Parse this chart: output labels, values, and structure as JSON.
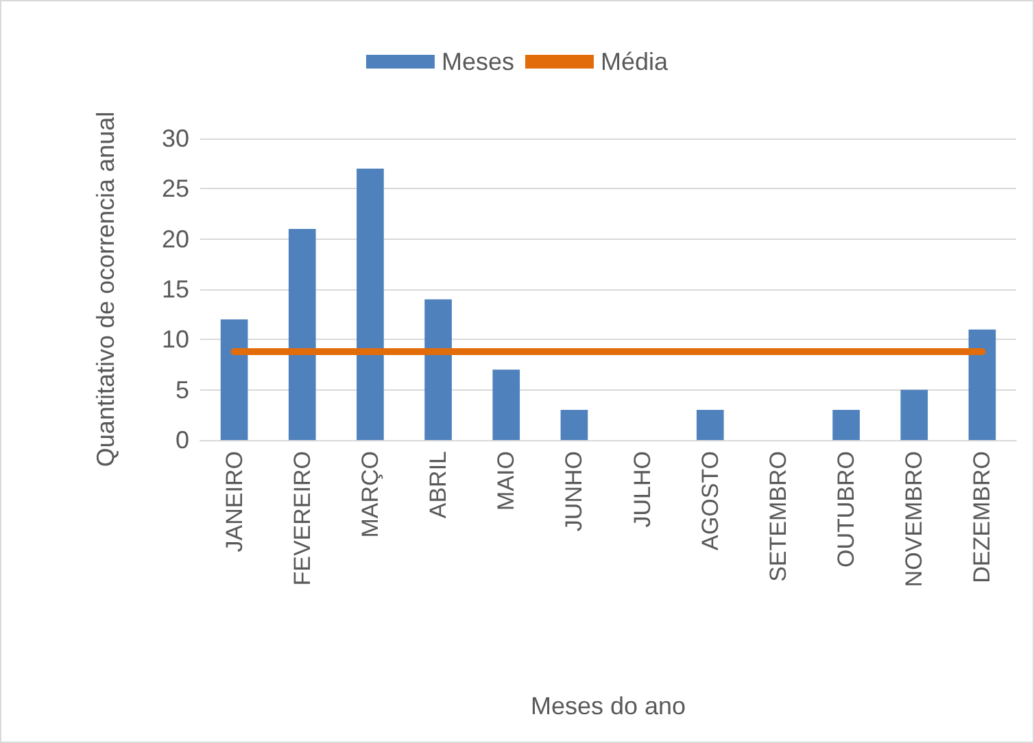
{
  "chart_data": {
    "type": "bar",
    "xlabel": "Meses do ano",
    "ylabel": "Quantitativo de ocorrencia anual",
    "categories": [
      "JANEIRO",
      "FEVEREIRO",
      "MARÇO",
      "ABRIL",
      "MAIO",
      "JUNHO",
      "JULHO",
      "AGOSTO",
      "SETEMBRO",
      "OUTUBRO",
      "NOVEMBRO",
      "DEZEMBRO"
    ],
    "series": [
      {
        "name": "Meses",
        "color": "#4f81bd",
        "values": [
          12,
          21,
          27,
          14,
          7,
          3,
          0,
          3,
          0,
          3,
          5,
          11
        ]
      },
      {
        "name": "Média",
        "type": "line",
        "color": "#e36c0a",
        "values": [
          8.8,
          8.8,
          8.8,
          8.8,
          8.8,
          8.8,
          8.8,
          8.8,
          8.8,
          8.8,
          8.8,
          8.8
        ]
      }
    ],
    "ylim": [
      0,
      30
    ],
    "yticks": [
      0,
      5,
      10,
      15,
      20,
      25,
      30
    ],
    "grid": "y",
    "legend": "top",
    "marker": "none"
  }
}
